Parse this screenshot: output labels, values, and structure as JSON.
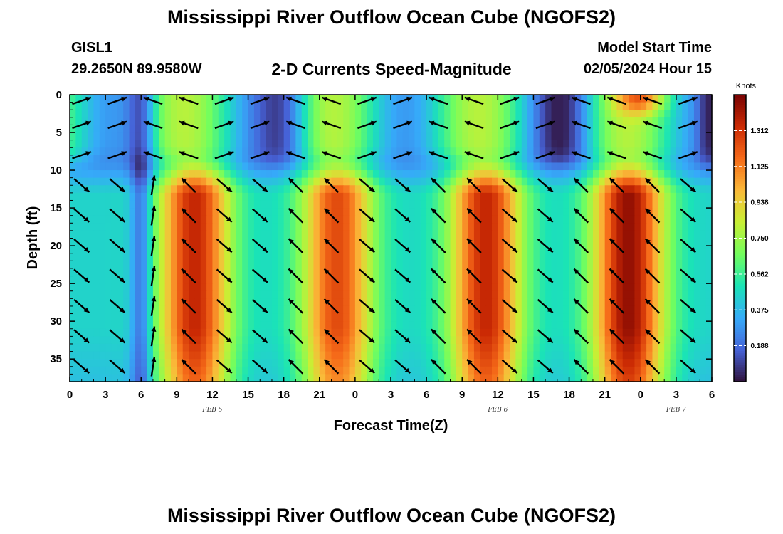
{
  "page": {
    "title": "Mississippi River Outflow Ocean Cube (NGOFS2)",
    "station_id": "GISL1",
    "station_coords": "29.2650N  89.9580W",
    "subtitle": "2-D Currents Speed-Magnitude",
    "model_start_label": "Model Start Time",
    "model_start_value": "02/05/2024 Hour 15",
    "bottom_title": "Mississippi River Outflow Ocean Cube (NGOFS2)"
  },
  "chart_data": {
    "type": "heatmap",
    "title": "2-D Currents Speed-Magnitude",
    "xlabel": "Forecast Time(Z)",
    "ylabel": "Depth (ft)",
    "x_range_hours": [
      0,
      54
    ],
    "y_range_ft": [
      0,
      38
    ],
    "x_tick_hours": [
      0,
      3,
      6,
      9,
      12,
      15,
      18,
      21,
      24,
      27,
      30,
      33,
      36,
      39,
      42,
      45,
      48,
      51,
      54
    ],
    "x_tick_labels": [
      "0",
      "3",
      "6",
      "9",
      "12",
      "15",
      "18",
      "21",
      "0",
      "3",
      "6",
      "9",
      "12",
      "15",
      "18",
      "21",
      "0",
      "3",
      "6"
    ],
    "y_ticks": [
      0,
      5,
      10,
      15,
      20,
      25,
      30,
      35
    ],
    "y_tick_labels": [
      "0",
      "5",
      "10",
      "15",
      "20",
      "25",
      "30",
      "35"
    ],
    "date_labels": [
      {
        "text": "FEB 5",
        "hour": 12
      },
      {
        "text": "FEB 6",
        "hour": 36
      },
      {
        "text": "FEB 7",
        "hour": 51
      }
    ],
    "colorbar": {
      "unit": "Knots",
      "min": 0.0,
      "max": 1.5,
      "ticks": [
        0.188,
        0.375,
        0.562,
        0.75,
        0.938,
        1.125,
        1.312
      ],
      "tick_labels": [
        "0.188",
        "0.375",
        "0.562",
        "0.750",
        "0.938",
        "1.125",
        "1.312"
      ]
    },
    "lower_layer_maxima": [
      {
        "center_hour": 10.5,
        "peak_knots": 1.35
      },
      {
        "center_hour": 22.5,
        "peak_knots": 1.25
      },
      {
        "center_hour": 35.0,
        "peak_knots": 1.35
      },
      {
        "center_hour": 47.0,
        "peak_knots": 1.45
      }
    ],
    "lower_layer_minima_hours": [
      0.5,
      6.0,
      15.5,
      28.5,
      42.0,
      53.5
    ],
    "arrow_depths_ft": [
      0,
      4,
      8,
      12,
      16,
      20,
      24,
      28,
      32,
      36
    ],
    "surface_arrow_direction": "alternating westward/eastward",
    "lower_arrow_direction": "northwest during slack-to-flood, southeast during peak flow"
  },
  "colors": {
    "text": "#000000",
    "background": "#ffffff",
    "colormap": [
      "#30123b",
      "#4662d7",
      "#36aaf9",
      "#1ae4b6",
      "#72fe5e",
      "#c8ef34",
      "#faba39",
      "#f66b19",
      "#cb2a04",
      "#7a0403"
    ]
  }
}
